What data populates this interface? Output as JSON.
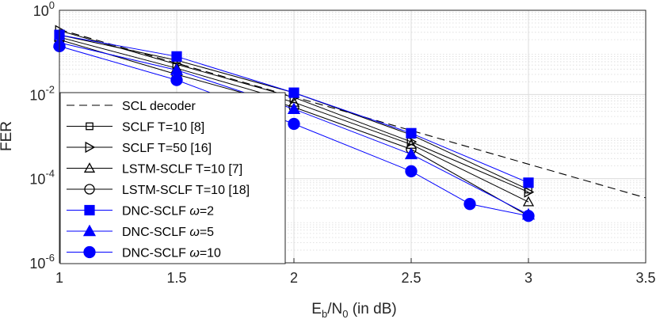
{
  "chart_data": {
    "type": "line",
    "y_scale": "log",
    "xlabel_main": "E",
    "xlabel_sub1": "b",
    "xlabel_mid": "/N",
    "xlabel_sub2": "0",
    "xlabel_tail": " (in dB)",
    "ylabel": "FER",
    "xlim": [
      1,
      3.5
    ],
    "ylim": [
      1e-06,
      1
    ],
    "x_ticks": [
      "1",
      "1.5",
      "2",
      "2.5",
      "3",
      "3.5"
    ],
    "y_ticks": [
      {
        "base": "10",
        "exp": "0",
        "value": 1
      },
      {
        "base": "10",
        "exp": "-2",
        "value": 0.01
      },
      {
        "base": "10",
        "exp": "-4",
        "value": 0.0001
      },
      {
        "base": "10",
        "exp": "-6",
        "value": 1e-06
      }
    ],
    "grid": true,
    "legend_position": "bottom-left",
    "series": [
      {
        "name": "SCL decoder",
        "legend_main": "SCL decoder",
        "legend_omega": "",
        "color": "#000000",
        "dash": true,
        "marker": "none",
        "x": [
          1,
          3.5
        ],
        "y": [
          0.35,
          3.5e-05
        ]
      },
      {
        "name": "SCLF T=10 [8]",
        "legend_main": "SCLF T=10 [8]",
        "legend_omega": "",
        "color": "#000000",
        "dash": false,
        "marker": "square-open",
        "x": [
          1,
          1.5,
          2,
          2.5,
          3
        ],
        "y": [
          0.26,
          0.065,
          0.011,
          0.0011,
          5.5e-05
        ]
      },
      {
        "name": "SCLF T=50 [16]",
        "legend_main": "SCLF T=50 [16]",
        "legend_omega": "",
        "color": "#000000",
        "dash": false,
        "marker": "triangle-right-open",
        "x": [
          1,
          1.5,
          2,
          2.5,
          3
        ],
        "y": [
          0.33,
          0.052,
          0.0085,
          0.00075,
          4.8e-05
        ]
      },
      {
        "name": "LSTM-SCLF T=10 [7]",
        "legend_main": "LSTM-SCLF T=10 [7]",
        "legend_omega": "",
        "color": "#000000",
        "dash": false,
        "marker": "triangle-up-open",
        "x": [
          1,
          1.5,
          2,
          2.5,
          3
        ],
        "y": [
          0.23,
          0.042,
          0.0065,
          0.00065,
          2.8e-05
        ]
      },
      {
        "name": "LSTM-SCLF T=10 [18]",
        "legend_main": "LSTM-SCLF T=10 [18]",
        "legend_omega": "",
        "color": "#000000",
        "dash": false,
        "marker": "circle-open",
        "x": [
          1,
          1.5,
          2,
          2.5,
          3
        ],
        "y": [
          0.2,
          0.03,
          0.005,
          0.0005,
          1.3e-05
        ]
      },
      {
        "name": "DNC-SCLF ω=2",
        "legend_main": "DNC-SCLF ",
        "legend_omega": "ω=2",
        "color": "#0000ff",
        "dash": false,
        "marker": "square-filled",
        "x": [
          1,
          1.5,
          2,
          2.5,
          3
        ],
        "y": [
          0.26,
          0.08,
          0.011,
          0.0012,
          8e-05
        ]
      },
      {
        "name": "DNC-SCLF ω=5",
        "legend_main": "DNC-SCLF ",
        "legend_omega": "ω=5",
        "color": "#0000ff",
        "dash": false,
        "marker": "triangle-up-filled",
        "x": [
          1,
          1.5,
          2,
          2.5,
          3
        ],
        "y": [
          0.17,
          0.038,
          0.0045,
          0.00038,
          1.4e-05
        ]
      },
      {
        "name": "DNC-SCLF ω=10",
        "legend_main": "DNC-SCLF ",
        "legend_omega": "ω=10",
        "color": "#0000ff",
        "dash": false,
        "marker": "circle-filled",
        "x": [
          1,
          1.5,
          2,
          2.5,
          2.75,
          3
        ],
        "y": [
          0.14,
          0.022,
          0.002,
          0.00015,
          2.5e-05,
          1.3e-05
        ]
      }
    ]
  }
}
